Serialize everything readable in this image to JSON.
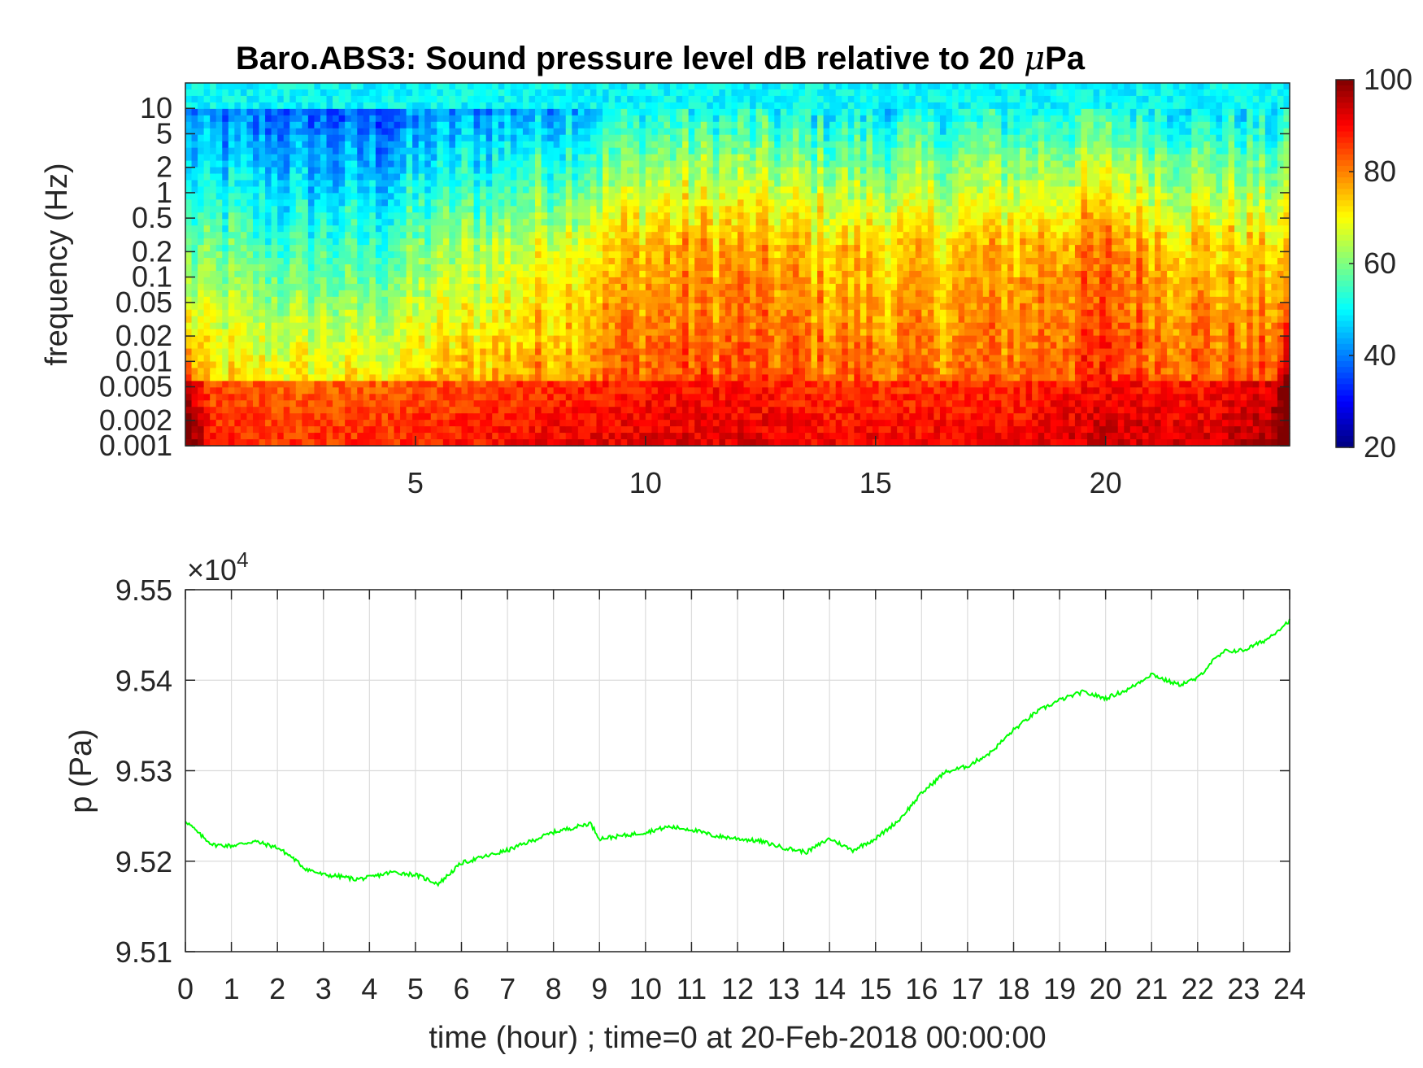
{
  "chart_data": [
    {
      "type": "heatmap",
      "title_main": "Baro.ABS3: Sound pressure level dB relative to 20 ",
      "title_mu": "μ",
      "title_unit": "Pa",
      "ylabel": "frequency (Hz)",
      "xlabel": "",
      "x_ticks": [
        "5",
        "10",
        "15",
        "20"
      ],
      "x_tick_values": [
        5,
        10,
        15,
        20
      ],
      "xlim": [
        0,
        24
      ],
      "y_scale": "log",
      "ylim": [
        0.001,
        20
      ],
      "y_ticks": [
        "10",
        "5",
        "2",
        "1",
        "0.5",
        "0.2",
        "0.1",
        "0.05",
        "0.02",
        "0.01",
        "0.005",
        "0.002",
        "0.001"
      ],
      "y_tick_values": [
        10,
        5,
        2,
        1,
        0.5,
        0.2,
        0.1,
        0.05,
        0.02,
        0.01,
        0.005,
        0.002,
        0.001
      ],
      "colormap": "jet",
      "colorbar": {
        "range": [
          20,
          100
        ],
        "ticks": [
          "100",
          "80",
          "60",
          "40",
          "20"
        ],
        "tick_values": [
          100,
          80,
          60,
          40,
          20
        ]
      },
      "activity_by_hour": [
        {
          "hour": 0,
          "dB_high_freq": 40,
          "dB_mid_freq": 58,
          "dB_low_freq": 86
        },
        {
          "hour": 2,
          "dB_high_freq": 38,
          "dB_mid_freq": 55,
          "dB_low_freq": 84
        },
        {
          "hour": 4,
          "dB_high_freq": 36,
          "dB_mid_freq": 54,
          "dB_low_freq": 84
        },
        {
          "hour": 6,
          "dB_high_freq": 42,
          "dB_mid_freq": 62,
          "dB_low_freq": 86
        },
        {
          "hour": 8,
          "dB_high_freq": 45,
          "dB_mid_freq": 68,
          "dB_low_freq": 88
        },
        {
          "hour": 10,
          "dB_high_freq": 52,
          "dB_mid_freq": 76,
          "dB_low_freq": 90
        },
        {
          "hour": 12,
          "dB_high_freq": 52,
          "dB_mid_freq": 77,
          "dB_low_freq": 90
        },
        {
          "hour": 14,
          "dB_high_freq": 50,
          "dB_mid_freq": 74,
          "dB_low_freq": 88
        },
        {
          "hour": 16,
          "dB_high_freq": 50,
          "dB_mid_freq": 73,
          "dB_low_freq": 88
        },
        {
          "hour": 18,
          "dB_high_freq": 52,
          "dB_mid_freq": 75,
          "dB_low_freq": 88
        },
        {
          "hour": 20,
          "dB_high_freq": 54,
          "dB_mid_freq": 80,
          "dB_low_freq": 92
        },
        {
          "hour": 22,
          "dB_high_freq": 50,
          "dB_mid_freq": 74,
          "dB_low_freq": 90
        },
        {
          "hour": 24,
          "dB_high_freq": 48,
          "dB_mid_freq": 72,
          "dB_low_freq": 95
        }
      ]
    },
    {
      "type": "line",
      "title": "",
      "xlabel": "time (hour) ; time=0 at 20-Feb-2018 00:00:00",
      "ylabel": "p (Pa)",
      "exponent_prefix": "×10",
      "exponent_power": "4",
      "xlim": [
        0,
        24
      ],
      "ylim": [
        9.51,
        9.55
      ],
      "x_ticks": [
        "0",
        "1",
        "2",
        "3",
        "4",
        "5",
        "6",
        "7",
        "8",
        "9",
        "10",
        "11",
        "12",
        "13",
        "14",
        "15",
        "16",
        "17",
        "18",
        "19",
        "20",
        "21",
        "22",
        "23",
        "24"
      ],
      "y_ticks": [
        "9.55",
        "9.54",
        "9.53",
        "9.52",
        "9.51"
      ],
      "y_tick_values": [
        9.55,
        9.54,
        9.53,
        9.52,
        9.51
      ],
      "grid": true,
      "line_color": "#00ff00",
      "series": [
        {
          "x": [
            0,
            0.3,
            0.6,
            1,
            1.5,
            2,
            2.3,
            2.6,
            3,
            3.4,
            3.7,
            4,
            4.5,
            5,
            5.5,
            6,
            6.5,
            7,
            7.5,
            8,
            8.5,
            8.8,
            9,
            9.5,
            10,
            10.5,
            11,
            11.5,
            12,
            12.5,
            13,
            13.5,
            14,
            14.5,
            15,
            15.5,
            16,
            16.5,
            17,
            17.5,
            18,
            18.5,
            19,
            19.5,
            20,
            20.5,
            21,
            21.3,
            21.6,
            22,
            22.3,
            22.6,
            23,
            23.5,
            24
          ],
          "y": [
            9.5245,
            9.523,
            9.5218,
            9.5217,
            9.5222,
            9.5215,
            9.5205,
            9.5192,
            9.5185,
            9.5183,
            9.518,
            9.5182,
            9.5188,
            9.5185,
            9.5175,
            9.5198,
            9.5205,
            9.5212,
            9.5222,
            9.5232,
            9.5238,
            9.5242,
            9.5225,
            9.5228,
            9.5232,
            9.5238,
            9.5235,
            9.5228,
            9.5225,
            9.5222,
            9.5215,
            9.521,
            9.5225,
            9.5212,
            9.5225,
            9.5245,
            9.5275,
            9.5298,
            9.5305,
            9.532,
            9.5345,
            9.5365,
            9.5378,
            9.5387,
            9.538,
            9.539,
            9.5407,
            9.54,
            9.5395,
            9.5402,
            9.542,
            9.5432,
            9.5433,
            9.5445,
            9.5466
          ]
        }
      ]
    }
  ]
}
